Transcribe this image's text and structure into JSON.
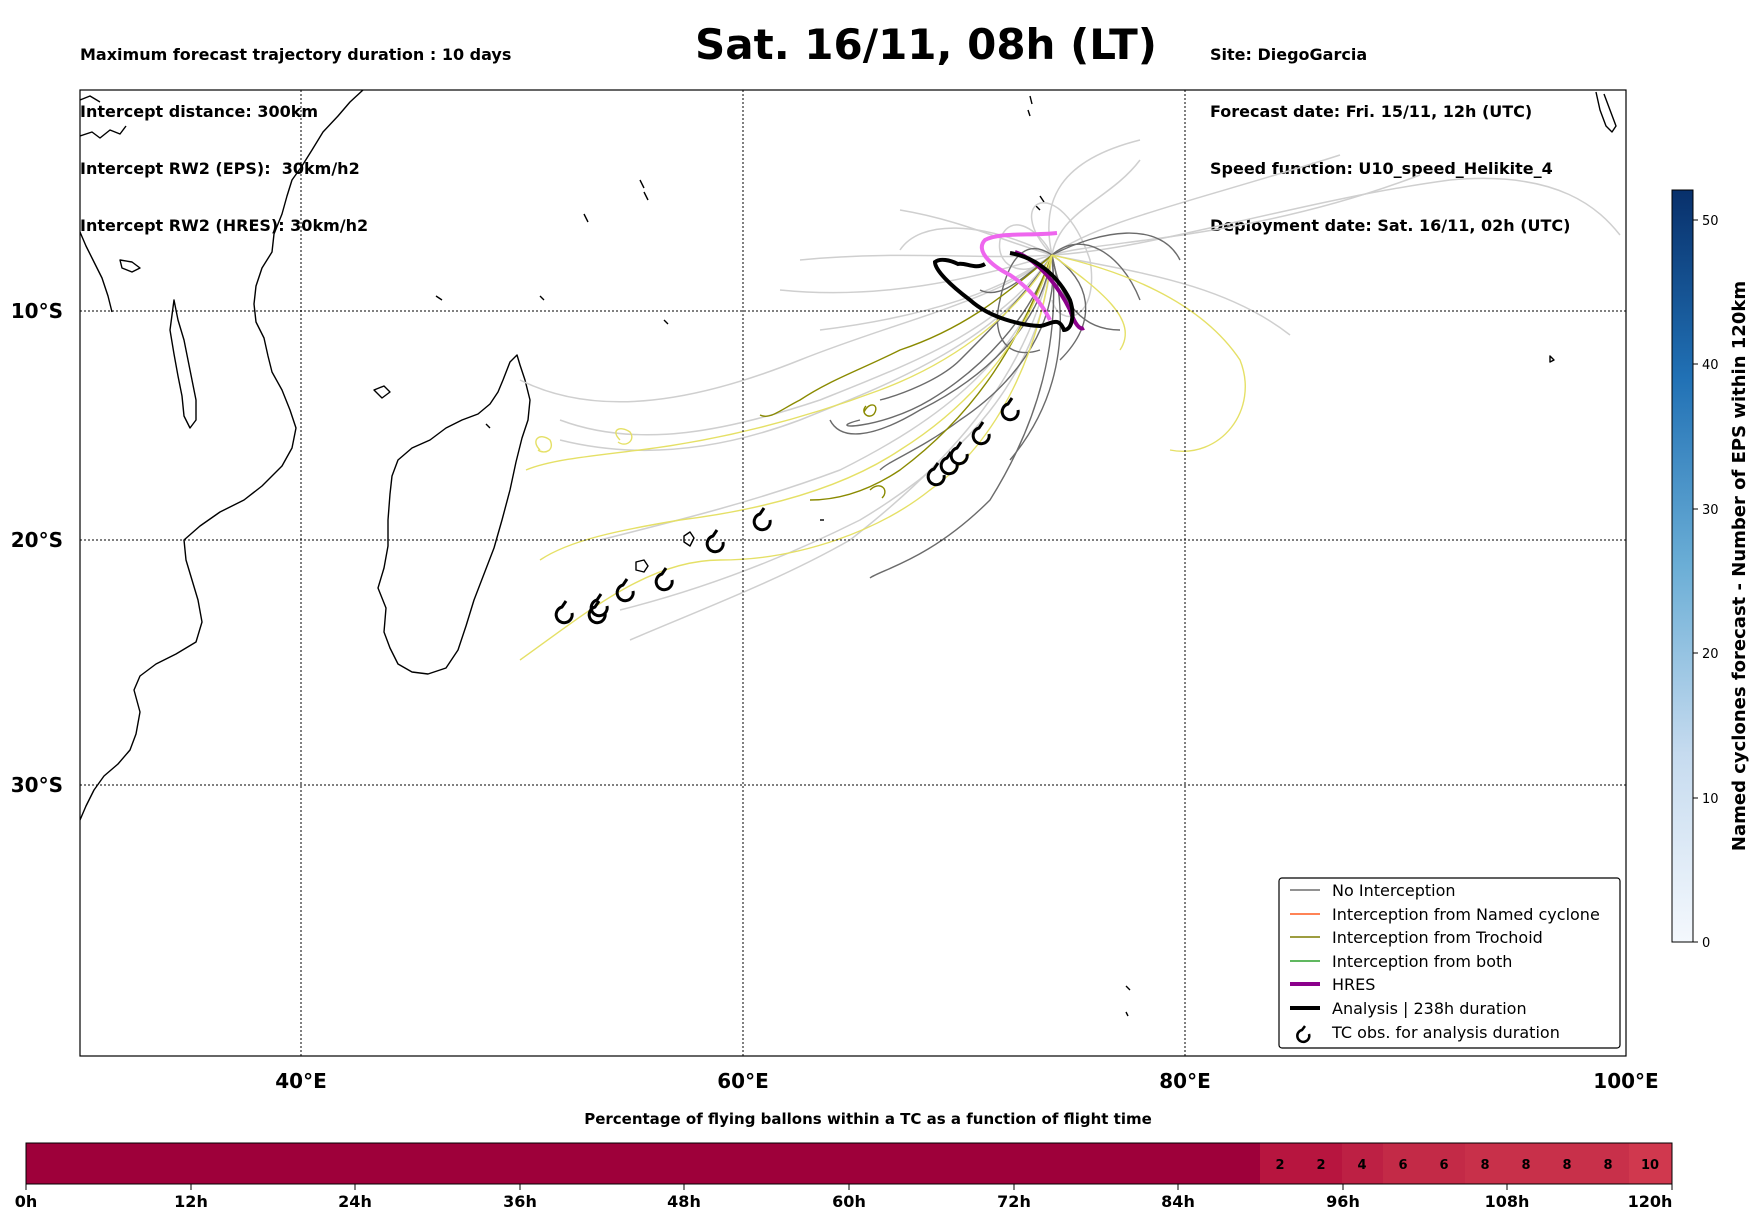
{
  "header_left": [
    "Maximum forecast trajectory duration : 10 days",
    "Intercept distance: 300km",
    "Intercept RW2 (EPS):  30km/h2",
    "Intercept RW2 (HRES): 30km/h2"
  ],
  "title": "Sat. 16/11, 08h (LT)",
  "header_right": [
    "Site: DiegoGarcia",
    "Forecast date: Fri. 15/11, 12h (UTC)",
    "Speed function: U10_speed_Helikite_4",
    "Deployment date: Sat. 16/11, 02h (UTC)"
  ],
  "map": {
    "lon_ticks": [
      "40°E",
      "60°E",
      "80°E",
      "100°E"
    ],
    "lat_ticks": [
      "10°S",
      "20°S",
      "30°S"
    ]
  },
  "legend": [
    {
      "label": "No Interception",
      "color": "#6e6e6e",
      "style": "line"
    },
    {
      "label": "Interception from Named cyclone",
      "color": "#ff5a1f",
      "style": "line"
    },
    {
      "label": "Interception from Trochoid",
      "color": "#7d7d00",
      "style": "line"
    },
    {
      "label": "Interception from both",
      "color": "#2ca02c",
      "style": "line"
    },
    {
      "label": "HRES",
      "color": "#8b008b",
      "style": "thick"
    },
    {
      "label": "Analysis | 238h duration",
      "color": "#000000",
      "style": "thick"
    },
    {
      "label": "TC obs. for analysis duration",
      "color": "#000000",
      "style": "cyclone-icon"
    }
  ],
  "colorbar": {
    "label": "Named cyclones forecast - Number of EPS within 120km",
    "ticks": [
      "0",
      "10",
      "20",
      "30",
      "40",
      "50"
    ]
  },
  "timebar": {
    "title": "Percentage of flying ballons within a TC as a function of flight time",
    "x_ticks": [
      "0h",
      "12h",
      "24h",
      "36h",
      "48h",
      "60h",
      "72h",
      "84h",
      "96h",
      "108h",
      "120h"
    ],
    "cell_labels": [
      "2",
      "2",
      "4",
      "6",
      "6",
      "8",
      "8",
      "8",
      "8",
      "10"
    ]
  }
}
